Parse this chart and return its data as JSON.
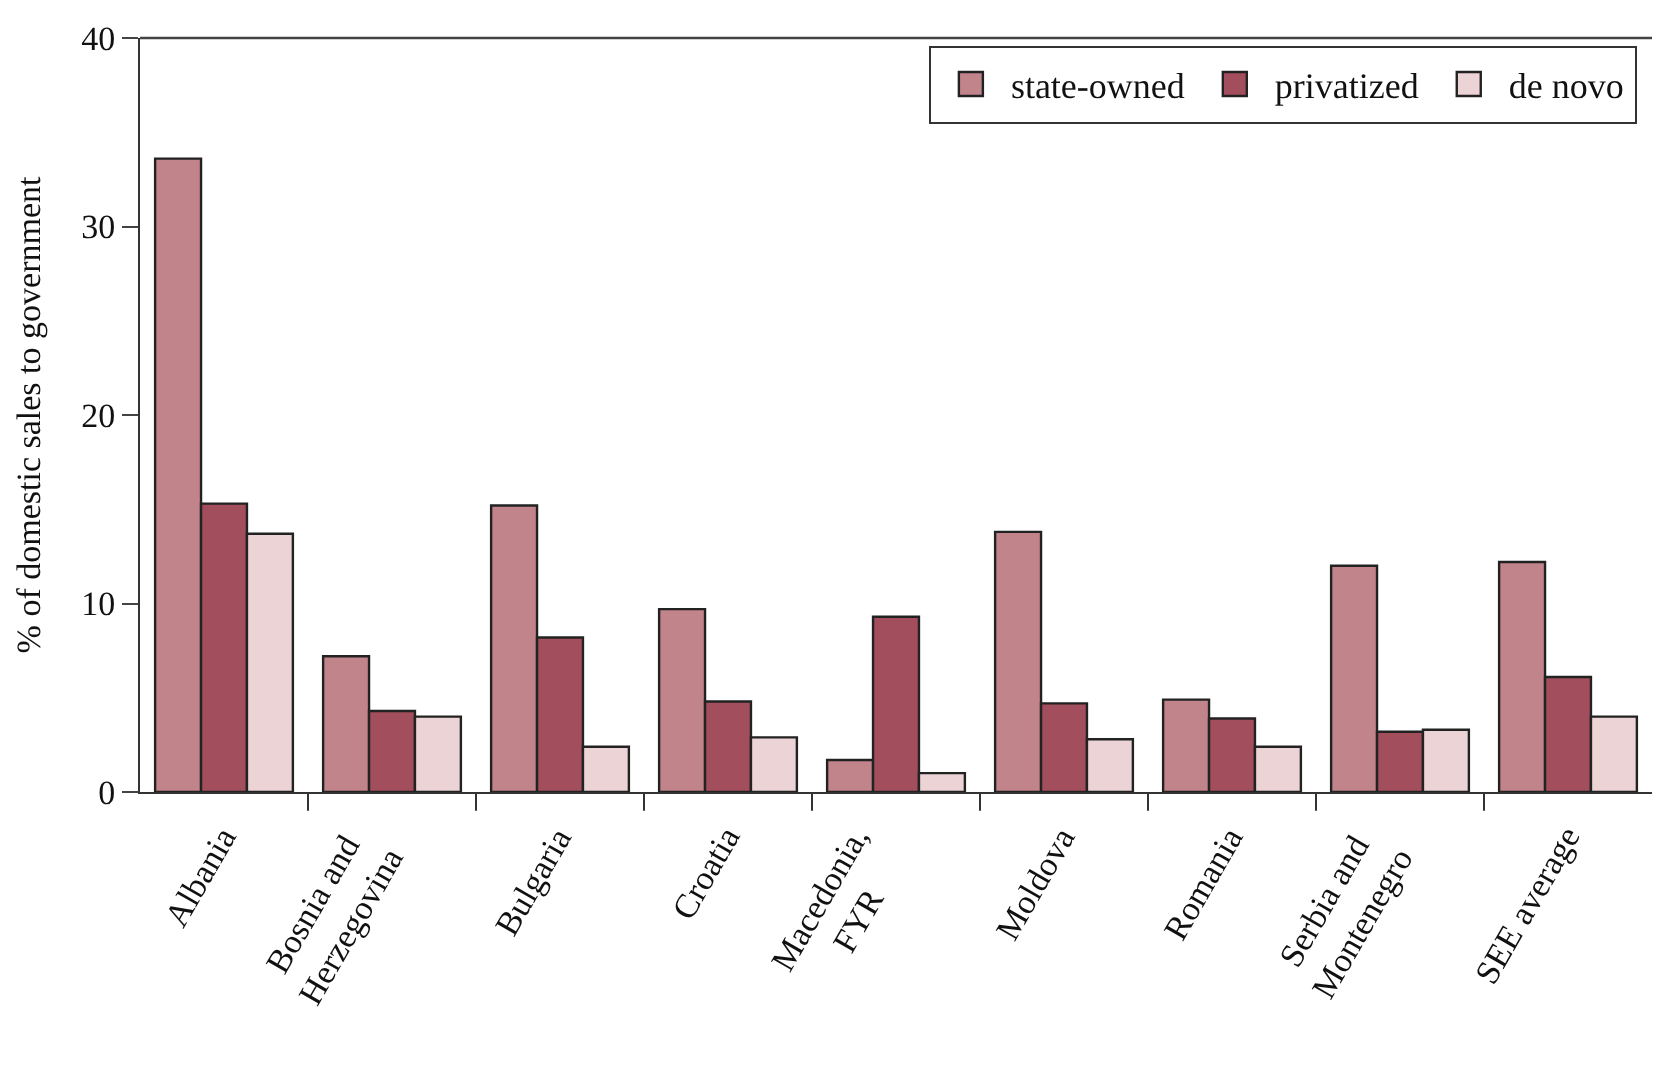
{
  "chart_data": {
    "type": "bar",
    "ylabel": "% of domestic sales to government",
    "categories": [
      "Albania",
      "Bosnia and\nHerzegovina",
      "Bulgaria",
      "Croatia",
      "Macedonia,\nFYR",
      "Moldova",
      "Romania",
      "Serbia and\nMontenegro",
      "SEE average"
    ],
    "series": [
      {
        "name": "state-owned",
        "color": "#c2848b",
        "values": [
          33.6,
          7.2,
          15.2,
          9.7,
          1.7,
          13.8,
          4.9,
          12.0,
          12.2
        ]
      },
      {
        "name": "privatized",
        "color": "#a24e5d",
        "values": [
          15.3,
          4.3,
          8.2,
          4.8,
          9.3,
          4.7,
          3.9,
          3.2,
          6.1
        ]
      },
      {
        "name": "de novo",
        "color": "#ebd3d6",
        "values": [
          13.7,
          4.0,
          2.4,
          2.9,
          1.0,
          2.8,
          2.4,
          3.3,
          4.0
        ]
      }
    ],
    "ylim": [
      0,
      40
    ],
    "yticks": [
      0,
      10,
      20,
      30,
      40
    ],
    "legend": "top right"
  }
}
